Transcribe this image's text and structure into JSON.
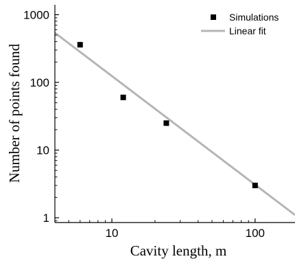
{
  "chart_data": {
    "type": "scatter",
    "xlabel": "Cavity length,  m",
    "ylabel": "Number of points found",
    "x_scale": "log",
    "y_scale": "log",
    "xlim": [
      4,
      190
    ],
    "ylim": [
      0.85,
      1400
    ],
    "x_ticks": [
      10,
      100
    ],
    "x_tick_labels": [
      "10",
      "100"
    ],
    "y_ticks": [
      1,
      10,
      100,
      1000
    ],
    "y_tick_labels": [
      "1",
      "10",
      "100",
      "1000"
    ],
    "grid": false,
    "legend_position": "top-right",
    "series": [
      {
        "name": "Simulations",
        "kind": "scatter",
        "marker": "square",
        "color": "#000000",
        "points": [
          {
            "x": 6,
            "y": 360
          },
          {
            "x": 12,
            "y": 60
          },
          {
            "x": 24,
            "y": 25
          },
          {
            "x": 100,
            "y": 3
          }
        ]
      },
      {
        "name": "Linear fit",
        "kind": "line",
        "color": "#b5b5b5",
        "points": [
          {
            "x": 4,
            "y": 540
          },
          {
            "x": 190,
            "y": 1.1
          }
        ]
      }
    ]
  }
}
